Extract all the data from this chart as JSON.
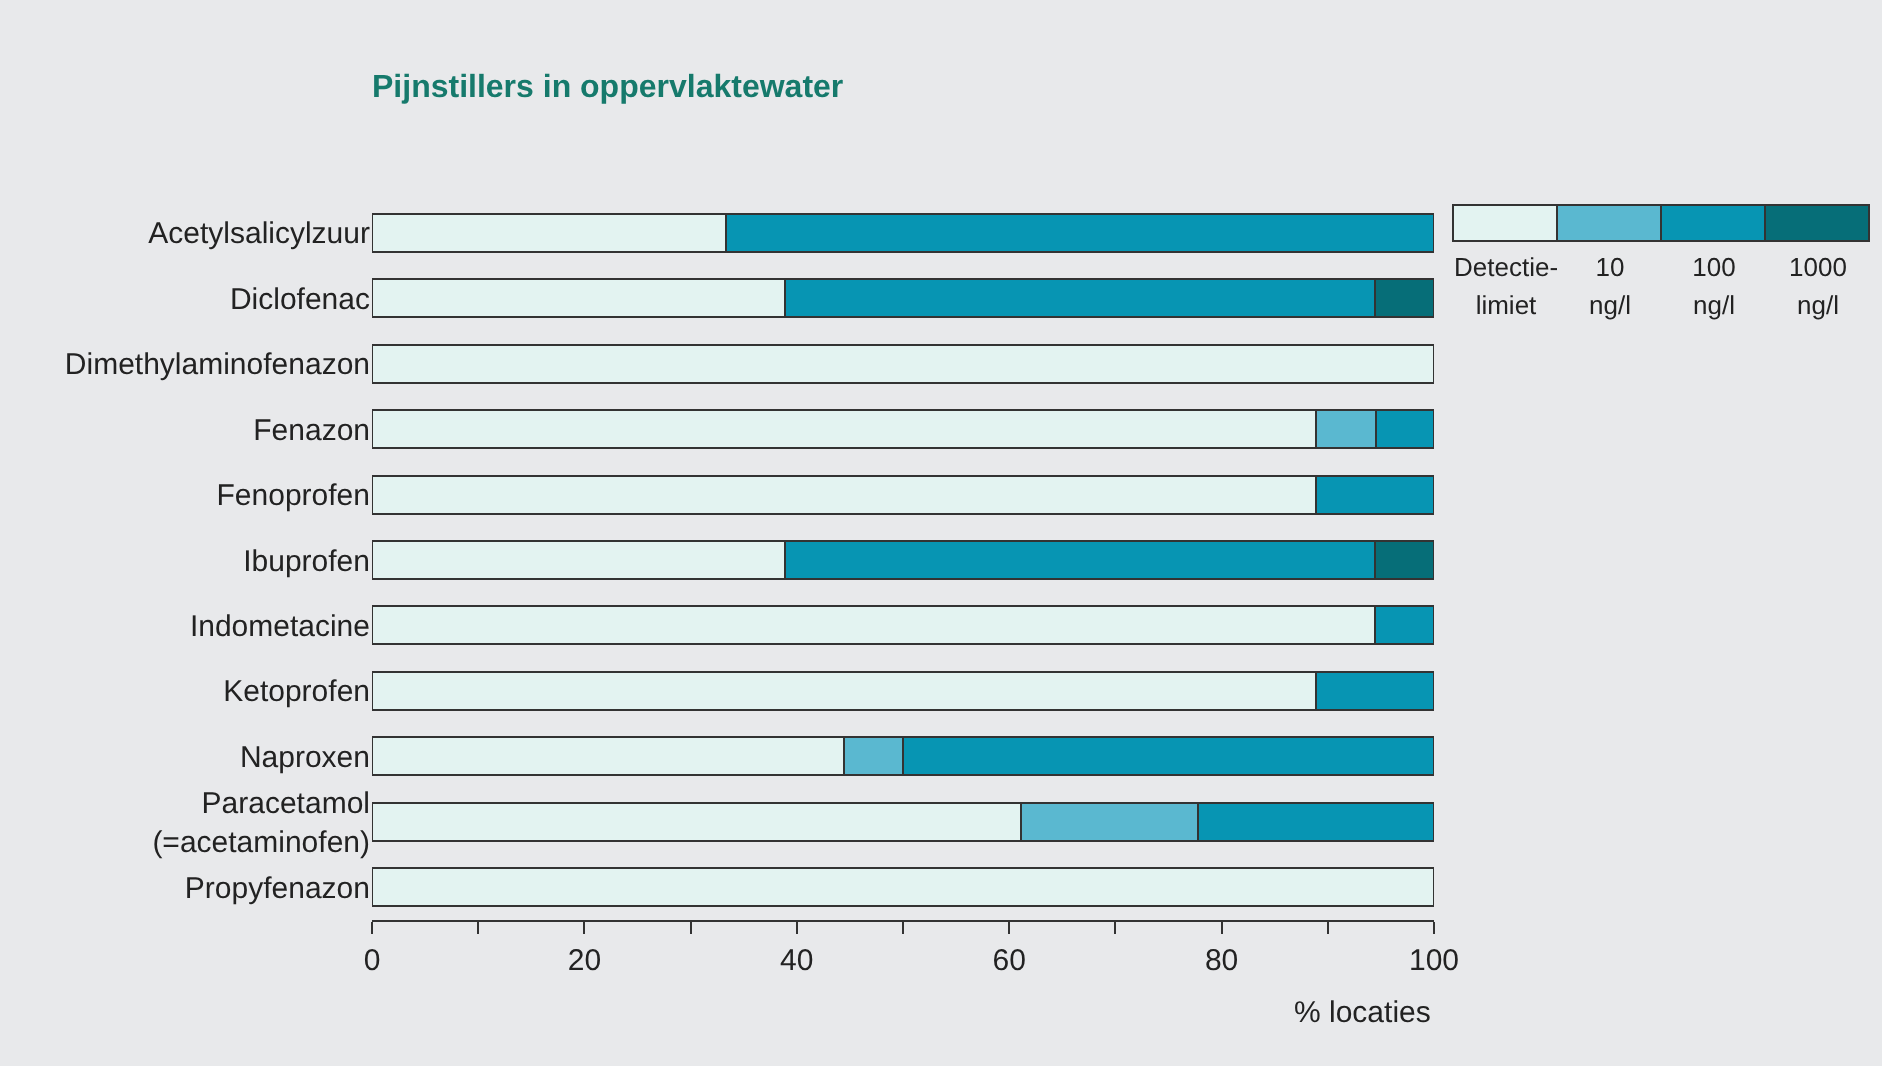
{
  "chart_data": {
    "type": "bar",
    "orientation": "horizontal",
    "stacked": true,
    "title": "Pijnstillers in oppervlaktewater",
    "xlabel": "% locaties",
    "categories": [
      "Acetylsalicylzuur",
      "Diclofenac",
      "Dimethylaminofenazon",
      "Fenazon",
      "Fenoprofen",
      "Ibuprofen",
      "Indometacine",
      "Ketoprofen",
      "Naproxen",
      "Paracetamol\n(=acetaminofen)",
      "Propyfenazon"
    ],
    "series": [
      {
        "name": "Detectie-\nlimiet",
        "color": "#e3f3f1",
        "values": [
          33.3,
          38.9,
          100,
          88.9,
          88.9,
          38.9,
          94.4,
          88.9,
          44.4,
          61.1,
          100
        ]
      },
      {
        "name": "10\nng/l",
        "color": "#5ab8d0",
        "values": [
          null,
          null,
          null,
          5.6,
          null,
          null,
          null,
          null,
          5.6,
          16.7,
          null
        ]
      },
      {
        "name": "100\nng/l",
        "color": "#0795b3",
        "values": [
          66.7,
          55.5,
          null,
          5.5,
          11.1,
          55.5,
          5.6,
          11.1,
          50,
          22.2,
          null
        ]
      },
      {
        "name": "1000\nng/l",
        "color": "#066e78",
        "values": [
          null,
          5.6,
          null,
          null,
          null,
          5.6,
          null,
          null,
          null,
          null,
          null
        ]
      }
    ],
    "xlim": [
      0,
      100
    ],
    "xticks": [
      0,
      {
        "value": 10,
        "label": null
      },
      20,
      {
        "value": 30,
        "label": null
      },
      40,
      {
        "value": 50,
        "label": null
      },
      60,
      {
        "value": 70,
        "label": null
      },
      80,
      {
        "value": 90,
        "label": null
      },
      100
    ],
    "grid": false,
    "legend": "top right"
  }
}
